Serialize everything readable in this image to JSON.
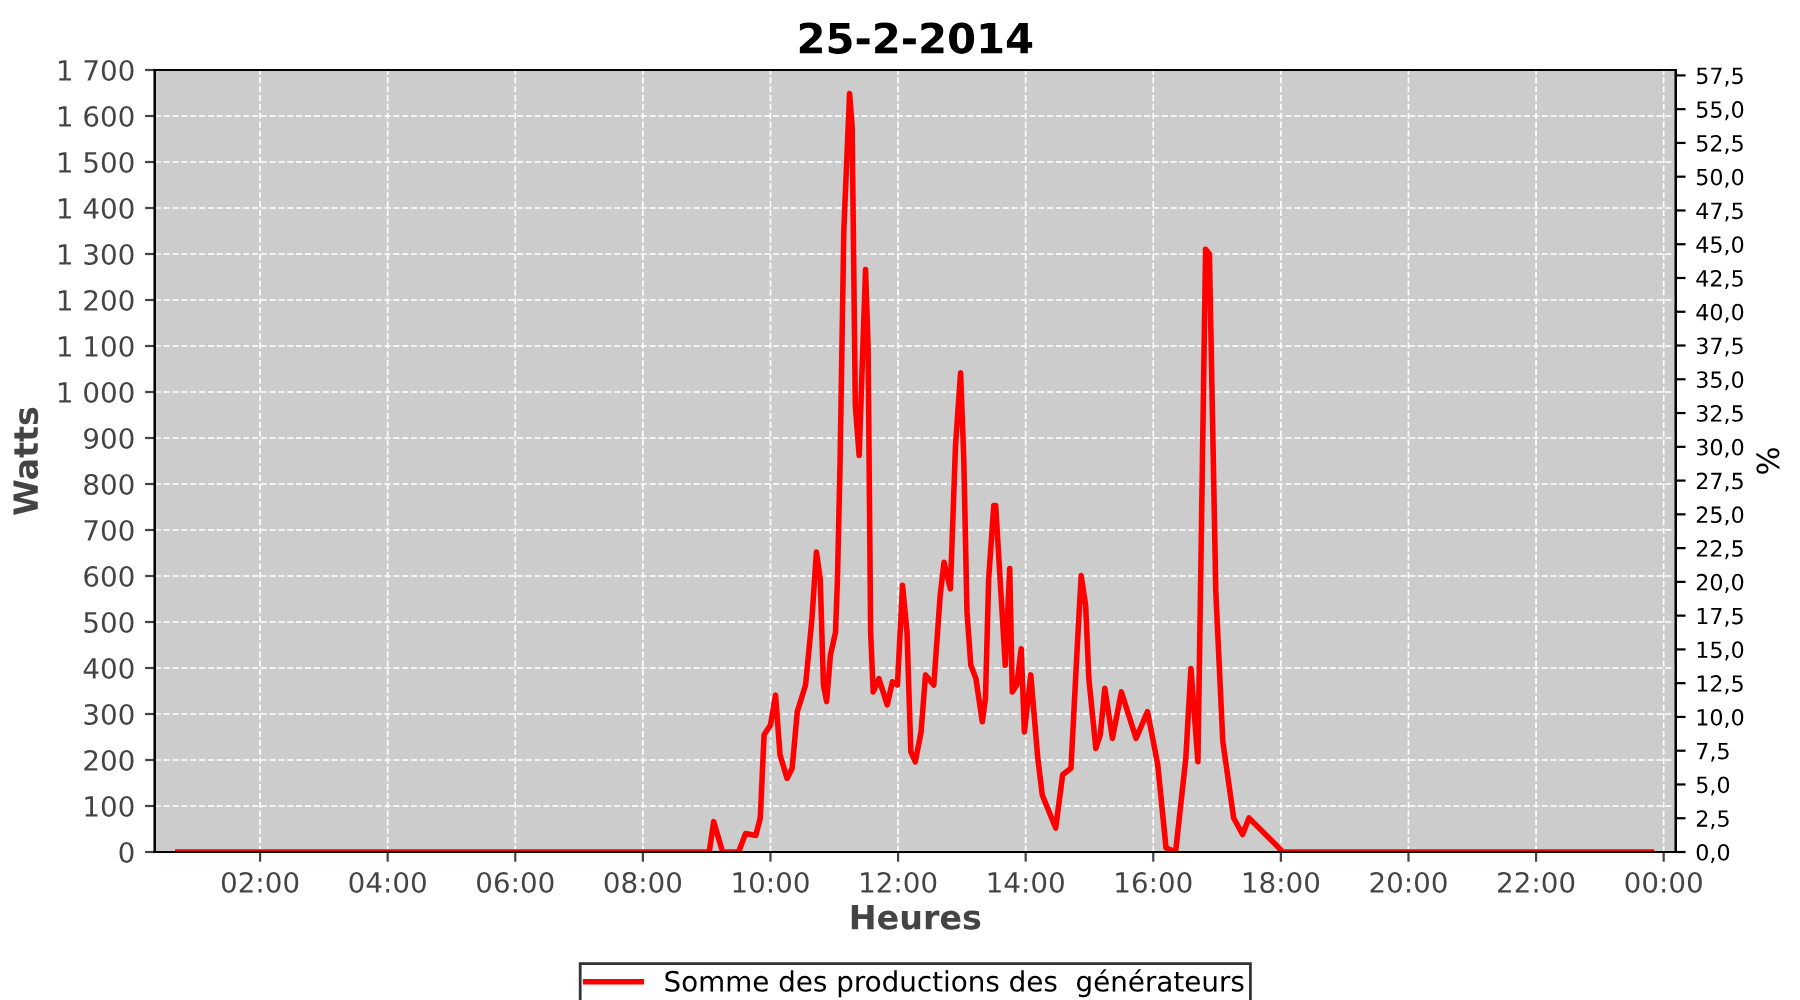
{
  "chart_data": {
    "type": "line",
    "title": "25-2-2014",
    "xlabel": "Heures",
    "ylabel": "Watts",
    "y2label": "%",
    "series": [
      {
        "name": "Somme des productions des  générateurs",
        "color": "#ff0000",
        "x": [
          0.71,
          8.9,
          9.04,
          9.11,
          9.25,
          9.5,
          9.61,
          9.77,
          9.84,
          9.9,
          10.0,
          10.08,
          10.15,
          10.26,
          10.34,
          10.42,
          10.55,
          10.65,
          10.72,
          10.78,
          10.83,
          10.88,
          10.94,
          11.02,
          11.05,
          11.09,
          11.15,
          11.24,
          11.28,
          11.33,
          11.39,
          11.49,
          11.53,
          11.57,
          11.61,
          11.7,
          11.83,
          11.91,
          11.99,
          12.07,
          12.14,
          12.2,
          12.27,
          12.36,
          12.43,
          12.56,
          12.66,
          12.72,
          12.82,
          12.9,
          12.98,
          13.03,
          13.08,
          13.14,
          13.22,
          13.32,
          13.37,
          13.42,
          13.5,
          13.53,
          13.63,
          13.68,
          13.75,
          13.79,
          13.86,
          13.93,
          13.98,
          14.08,
          14.19,
          14.26,
          14.47,
          14.58,
          14.71,
          14.81,
          14.87,
          14.94,
          14.99,
          15.1,
          15.17,
          15.24,
          15.36,
          15.5,
          15.73,
          15.91,
          16.07,
          16.2,
          16.35,
          16.51,
          16.59,
          16.7,
          16.82,
          16.88,
          16.98,
          17.09,
          17.26,
          17.4,
          17.5,
          17.87,
          18.03,
          23.81
        ],
        "values": [
          0,
          0,
          0,
          66,
          0,
          0,
          40,
          36,
          74,
          255,
          276,
          341,
          211,
          160,
          182,
          305,
          363,
          507,
          652,
          594,
          363,
          327,
          428,
          478,
          594,
          840,
          1353,
          1649,
          1577,
          970,
          862,
          1266,
          1100,
          478,
          348,
          377,
          320,
          370,
          363,
          580,
          478,
          218,
          196,
          261,
          385,
          363,
          558,
          630,
          572,
          883,
          1042,
          854,
          522,
          406,
          377,
          283,
          334,
          594,
          753,
          753,
          522,
          406,
          616,
          348,
          363,
          442,
          261,
          385,
          204,
          124,
          52,
          168,
          182,
          450,
          601,
          536,
          377,
          225,
          255,
          356,
          247,
          348,
          247,
          305,
          190,
          9,
          0,
          204,
          399,
          196,
          1310,
          1300,
          565,
          240,
          74,
          38,
          74,
          23,
          0,
          0
        ]
      }
    ],
    "xlim": [
      0.35,
      24.19
    ],
    "xticks": [
      {
        "value": 2,
        "label": "02:00"
      },
      {
        "value": 4,
        "label": "04:00"
      },
      {
        "value": 6,
        "label": "06:00"
      },
      {
        "value": 8,
        "label": "08:00"
      },
      {
        "value": 10,
        "label": "10:00"
      },
      {
        "value": 12,
        "label": "12:00"
      },
      {
        "value": 14,
        "label": "14:00"
      },
      {
        "value": 16,
        "label": "16:00"
      },
      {
        "value": 18,
        "label": "18:00"
      },
      {
        "value": 20,
        "label": "20:00"
      },
      {
        "value": 22,
        "label": "22:00"
      },
      {
        "value": 24,
        "label": "00:00"
      }
    ],
    "ylim": [
      0,
      1700
    ],
    "yticks": [
      0,
      100,
      200,
      300,
      400,
      500,
      600,
      700,
      800,
      900,
      {
        "value": 1000,
        "label": "1 000"
      },
      {
        "value": 1100,
        "label": "1 100"
      },
      {
        "value": 1200,
        "label": "1 200"
      },
      {
        "value": 1300,
        "label": "1 300"
      },
      {
        "value": 1400,
        "label": "1 400"
      },
      {
        "value": 1500,
        "label": "1 500"
      },
      {
        "value": 1600,
        "label": "1 600"
      },
      {
        "value": 1700,
        "label": "1 700"
      }
    ],
    "y2lim": [
      0,
      57.9
    ],
    "y2ticks": [
      {
        "value": 0,
        "label": "0,0"
      },
      {
        "value": 2.5,
        "label": "2,5"
      },
      {
        "value": 5,
        "label": "5,0"
      },
      {
        "value": 7.5,
        "label": "7,5"
      },
      {
        "value": 10,
        "label": "10,0"
      },
      {
        "value": 12.5,
        "label": "12,5"
      },
      {
        "value": 15,
        "label": "15,0"
      },
      {
        "value": 17.5,
        "label": "17,5"
      },
      {
        "value": 20,
        "label": "20,0"
      },
      {
        "value": 22.5,
        "label": "22,5"
      },
      {
        "value": 25,
        "label": "25,0"
      },
      {
        "value": 27.5,
        "label": "27,5"
      },
      {
        "value": 30,
        "label": "30,0"
      },
      {
        "value": 32.5,
        "label": "32,5"
      },
      {
        "value": 35,
        "label": "35,0"
      },
      {
        "value": 37.5,
        "label": "37,5"
      },
      {
        "value": 40,
        "label": "40,0"
      },
      {
        "value": 42.5,
        "label": "42,5"
      },
      {
        "value": 45,
        "label": "45,0"
      },
      {
        "value": 47.5,
        "label": "47,5"
      },
      {
        "value": 50,
        "label": "50,0"
      },
      {
        "value": 52.5,
        "label": "52,5"
      },
      {
        "value": 55,
        "label": "55,0"
      },
      {
        "value": 57.5,
        "label": "57,5"
      }
    ],
    "grid": true,
    "legend": "bottom",
    "line_style": "solid",
    "marker": "none"
  }
}
